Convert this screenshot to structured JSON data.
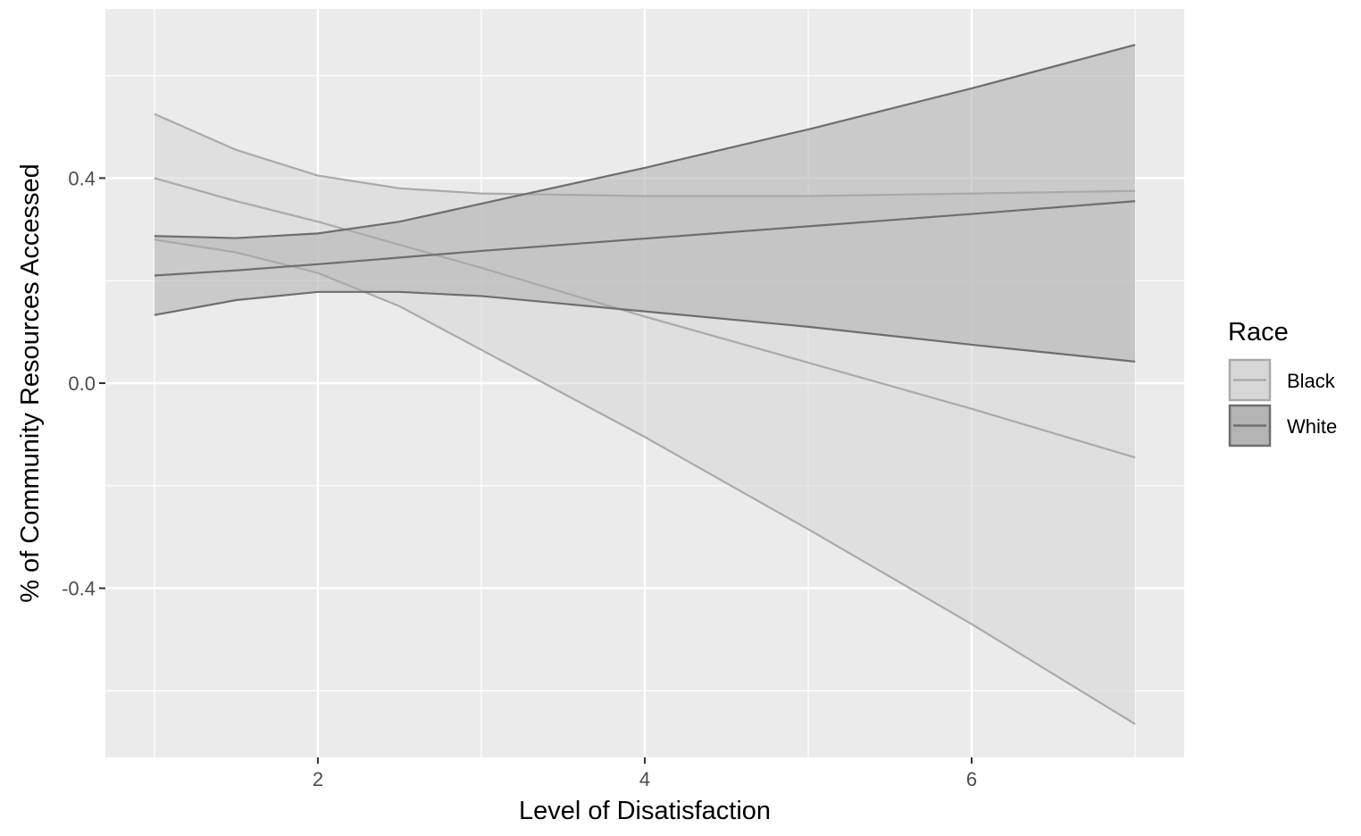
{
  "chart_data": {
    "type": "line",
    "title": "",
    "xlabel": "Level of Disatisfaction",
    "ylabel": "% of Community Resources Accessed",
    "xlim": [
      0.7,
      7.3
    ],
    "ylim": [
      -0.73,
      0.73
    ],
    "x_ticks": [
      2,
      4,
      6
    ],
    "x_tick_labels": [
      "2",
      "4",
      "6"
    ],
    "x_minor_ticks": [
      1,
      3,
      5,
      7
    ],
    "y_ticks": [
      -0.4,
      0.0,
      0.4
    ],
    "y_tick_labels": [
      "-0.4",
      "0.0",
      "0.4"
    ],
    "y_minor_ticks": [
      -0.6,
      -0.2,
      0.2,
      0.6
    ],
    "grid": true,
    "legend": {
      "title": "Race",
      "position": "right"
    },
    "series": [
      {
        "name": "Black",
        "line_color": "#aaaaaa",
        "fill_color": "#d7d7d7",
        "x": [
          1,
          1.5,
          2,
          2.5,
          3,
          4,
          5,
          6,
          7
        ],
        "fit": [
          0.4,
          0.355,
          0.315,
          0.27,
          0.225,
          0.13,
          0.04,
          -0.05,
          -0.145
        ],
        "upper": [
          0.525,
          0.455,
          0.405,
          0.38,
          0.37,
          0.365,
          0.365,
          0.37,
          0.375
        ],
        "lower": [
          0.28,
          0.255,
          0.215,
          0.15,
          0.065,
          -0.105,
          -0.285,
          -0.47,
          -0.665
        ]
      },
      {
        "name": "White",
        "line_color": "#6e6e6e",
        "fill_color": "#b4b4b4",
        "x": [
          1,
          1.5,
          2,
          2.5,
          3,
          4,
          5,
          6,
          7
        ],
        "fit": [
          0.21,
          0.22,
          0.232,
          0.245,
          0.258,
          0.282,
          0.306,
          0.33,
          0.355
        ],
        "upper": [
          0.287,
          0.283,
          0.292,
          0.315,
          0.35,
          0.42,
          0.495,
          0.575,
          0.66
        ],
        "lower": [
          0.133,
          0.162,
          0.178,
          0.178,
          0.17,
          0.14,
          0.11,
          0.075,
          0.042
        ]
      }
    ]
  }
}
